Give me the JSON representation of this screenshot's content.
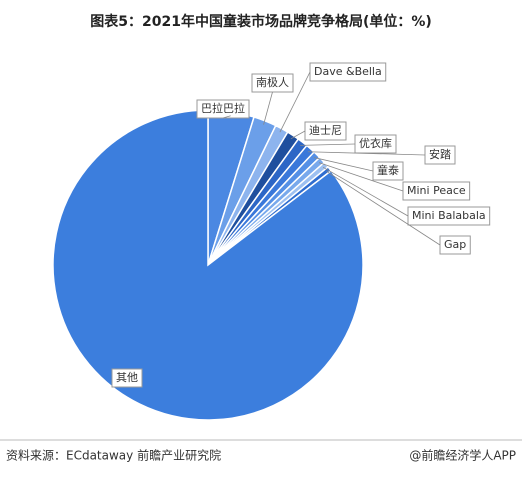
{
  "chart_data": {
    "type": "pie",
    "title": "图表5：2021年中国童装市场品牌竞争格局(单位：%)",
    "categories": [
      "巴拉巴拉",
      "南极人",
      "Dave &Bella",
      "迪士尼",
      "优衣库",
      "安踏",
      "童泰",
      "Mini Peace",
      "Mini Balabala",
      "Gap",
      "其他"
    ],
    "values": [
      4.8,
      2.4,
      1.4,
      1.3,
      1.1,
      1.0,
      0.8,
      0.7,
      0.6,
      0.5,
      85.4
    ],
    "colors": [
      "#4b88e2",
      "#6b9fe9",
      "#8db4ee",
      "#1f4f9e",
      "#2c66c6",
      "#3a78da",
      "#5590e6",
      "#79a9ec",
      "#9dc0f1",
      "#2f6dd0",
      "#3c7edd"
    ]
  },
  "source": "资料来源：ECdataway 前瞻产业研究院",
  "credit": "@前瞻经济学人APP"
}
